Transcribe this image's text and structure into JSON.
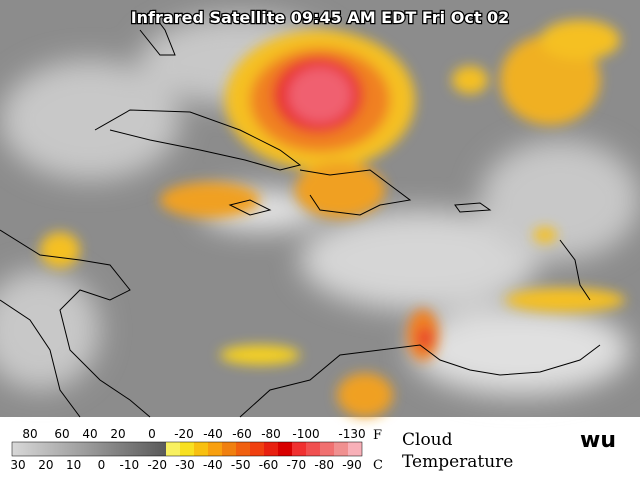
{
  "title": "Infrared Satellite 09:45 AM EDT Fri Oct 02",
  "legend": {
    "fahrenheit": {
      "ticks": [
        "80",
        "60",
        "40",
        "20",
        "0",
        "-20",
        "-40",
        "-60",
        "-80",
        "-100",
        "-130"
      ],
      "unit": "F"
    },
    "celsius": {
      "ticks": [
        "30",
        "20",
        "10",
        "0",
        "-10",
        "-20",
        "-30",
        "-40",
        "-50",
        "-60",
        "-70",
        "-80",
        "-90"
      ],
      "unit": "C"
    },
    "caption": [
      "Cloud",
      "Temperature"
    ]
  },
  "logo": "wu"
}
